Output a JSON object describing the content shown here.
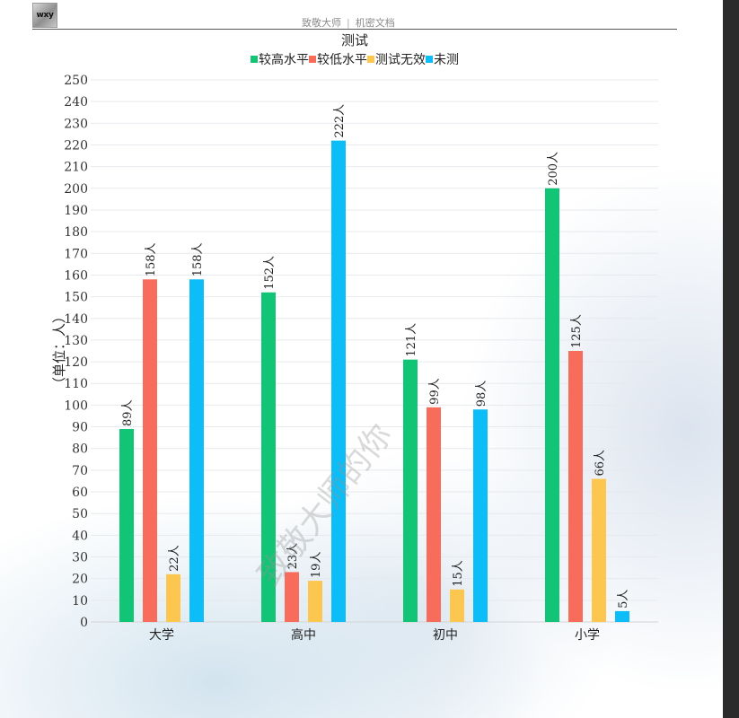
{
  "header": {
    "logo_text": "wxy",
    "left_text": "致敬大师",
    "separator": "|",
    "right_text": "机密文档"
  },
  "watermark": "致敬大师的你",
  "chart_data": {
    "type": "bar",
    "title": "测试",
    "ylabel": "（单位：人）",
    "xlabel": "",
    "ylim": [
      0,
      250
    ],
    "ytick_step": 10,
    "categories": [
      "大学",
      "高中",
      "初中",
      "小学"
    ],
    "value_suffix": "人",
    "legend_position": "top-center",
    "grid": true,
    "series": [
      {
        "name": "较高水平",
        "color": "#12c476",
        "values": [
          89,
          152,
          121,
          200
        ]
      },
      {
        "name": "较低水平",
        "color": "#f86c5c",
        "values": [
          158,
          23,
          99,
          125
        ]
      },
      {
        "name": "测试无效",
        "color": "#fdc64e",
        "values": [
          22,
          19,
          15,
          66
        ]
      },
      {
        "name": "未测",
        "color": "#0dbdf8",
        "values": [
          158,
          222,
          98,
          5
        ]
      }
    ]
  }
}
